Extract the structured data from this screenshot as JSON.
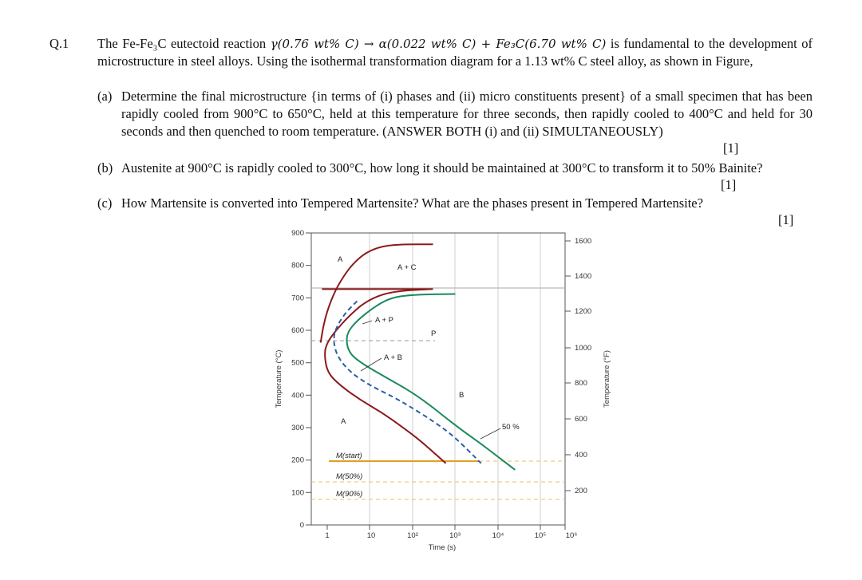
{
  "question": {
    "number": "Q.1",
    "intro_a": "The Fe-Fe₃C eutectoid reaction",
    "reaction": "γ(0.76 wt% C) → α(0.022 wt% C) + Fe₃C(6.70 wt% C)",
    "intro_b": "is fundamental to the",
    "intro_c": "development of microstructure in steel alloys. Using the isothermal transformation diagram for a 1.13 wt% C steel alloy, as shown in Figure,"
  },
  "parts": [
    {
      "label": "(a)",
      "text": "Determine the final microstructure {in terms of (i) phases and (ii) micro constituents present} of a small specimen that has been rapidly cooled from 900°C to 650°C, held at this temperature for three seconds, then rapidly cooled to 400°C and held for 30 seconds and then quenched to room temperature. (ANSWER BOTH (i) and (ii) SIMULTANEOUSLY)",
      "mark": "[1]"
    },
    {
      "label": "(b)",
      "text": "Austenite at 900°C is rapidly cooled to 300°C, how long it should be maintained at 300°C to transform it to 50% Bainite?",
      "mark": "[1]"
    },
    {
      "label": "(c)",
      "text": "How Martensite is converted into Tempered Martensite? What are the phases present in Tempered Martensite?",
      "mark": "[1]"
    }
  ],
  "chart_data": {
    "type": "line",
    "xlabel": "Time (s)",
    "ylabel": "Temperature (°C)",
    "y2label": "Temperature (°F)",
    "x_scale": "log",
    "xlim": [
      0.5,
      1000000
    ],
    "ylim": [
      0,
      900
    ],
    "x_ticks": [
      "1",
      "10",
      "10²",
      "10³",
      "10⁴",
      "10⁵",
      "10⁶"
    ],
    "y_ticks": [
      "0",
      "100",
      "200",
      "300",
      "400",
      "500",
      "600",
      "700",
      "800",
      "900"
    ],
    "y2_ticks": [
      "200",
      "400",
      "600",
      "800",
      "1000",
      "1200",
      "1400",
      "1600"
    ],
    "region_labels": {
      "A_top": "A",
      "A_bottom": "A",
      "AC": "A + C",
      "AP": "A + P",
      "P": "P",
      "AB": "A + B",
      "B": "B",
      "fifty": "50 %"
    },
    "martensite_labels": {
      "start": "M(start)",
      "fifty": "M(50%)",
      "ninety": "M(90%)"
    },
    "eutectoid_temp": 727,
    "martensite_temps": {
      "start": 200,
      "fifty": 130,
      "ninety": 75
    },
    "series": [
      {
        "color": "#8b1a1a",
        "points": [
          [
            0.7,
            562
          ],
          [
            0.8,
            610
          ],
          [
            1,
            660
          ],
          [
            1.5,
            720
          ],
          [
            2.5,
            770
          ],
          [
            4,
            805
          ],
          [
            8,
            840
          ],
          [
            20,
            860
          ],
          [
            60,
            865
          ],
          [
            300,
            865
          ]
        ]
      },
      {
        "color": "#8b1a1a",
        "points": [
          [
            0.75,
            727
          ],
          [
            1,
            727
          ],
          [
            30,
            727
          ],
          [
            300,
            727
          ]
        ]
      },
      {
        "color": "#8b1a1a",
        "points": [
          [
            280,
            727
          ],
          [
            30,
            720
          ],
          [
            8,
            690
          ],
          [
            3,
            640
          ],
          [
            1.5,
            595
          ],
          [
            1,
            562
          ],
          [
            0.85,
            530
          ],
          [
            1,
            470
          ],
          [
            2,
            430
          ],
          [
            6,
            385
          ],
          [
            20,
            345
          ],
          [
            60,
            300
          ],
          [
            150,
            260
          ],
          [
            300,
            225
          ],
          [
            600,
            190
          ]
        ]
      },
      {
        "color": "#2d5fa8",
        "dashed": true,
        "points": [
          [
            5,
            690
          ],
          [
            2.5,
            650
          ],
          [
            1.5,
            600
          ],
          [
            1.4,
            560
          ],
          [
            1.8,
            515
          ],
          [
            3.5,
            470
          ],
          [
            10,
            430
          ],
          [
            35,
            395
          ],
          [
            100,
            360
          ],
          [
            300,
            320
          ],
          [
            800,
            280
          ],
          [
            2000,
            230
          ],
          [
            4000,
            190
          ]
        ]
      },
      {
        "color": "#1a8a5a",
        "points": [
          [
            1000,
            712
          ],
          [
            100,
            710
          ],
          [
            30,
            700
          ],
          [
            12,
            670
          ],
          [
            5,
            630
          ],
          [
            3,
            595
          ],
          [
            2.8,
            560
          ],
          [
            3.5,
            525
          ],
          [
            7,
            495
          ],
          [
            20,
            460
          ],
          [
            70,
            420
          ],
          [
            200,
            380
          ],
          [
            600,
            330
          ],
          [
            1500,
            290
          ],
          [
            4000,
            250
          ],
          [
            10000,
            210
          ],
          [
            25000,
            170
          ]
        ]
      }
    ]
  }
}
